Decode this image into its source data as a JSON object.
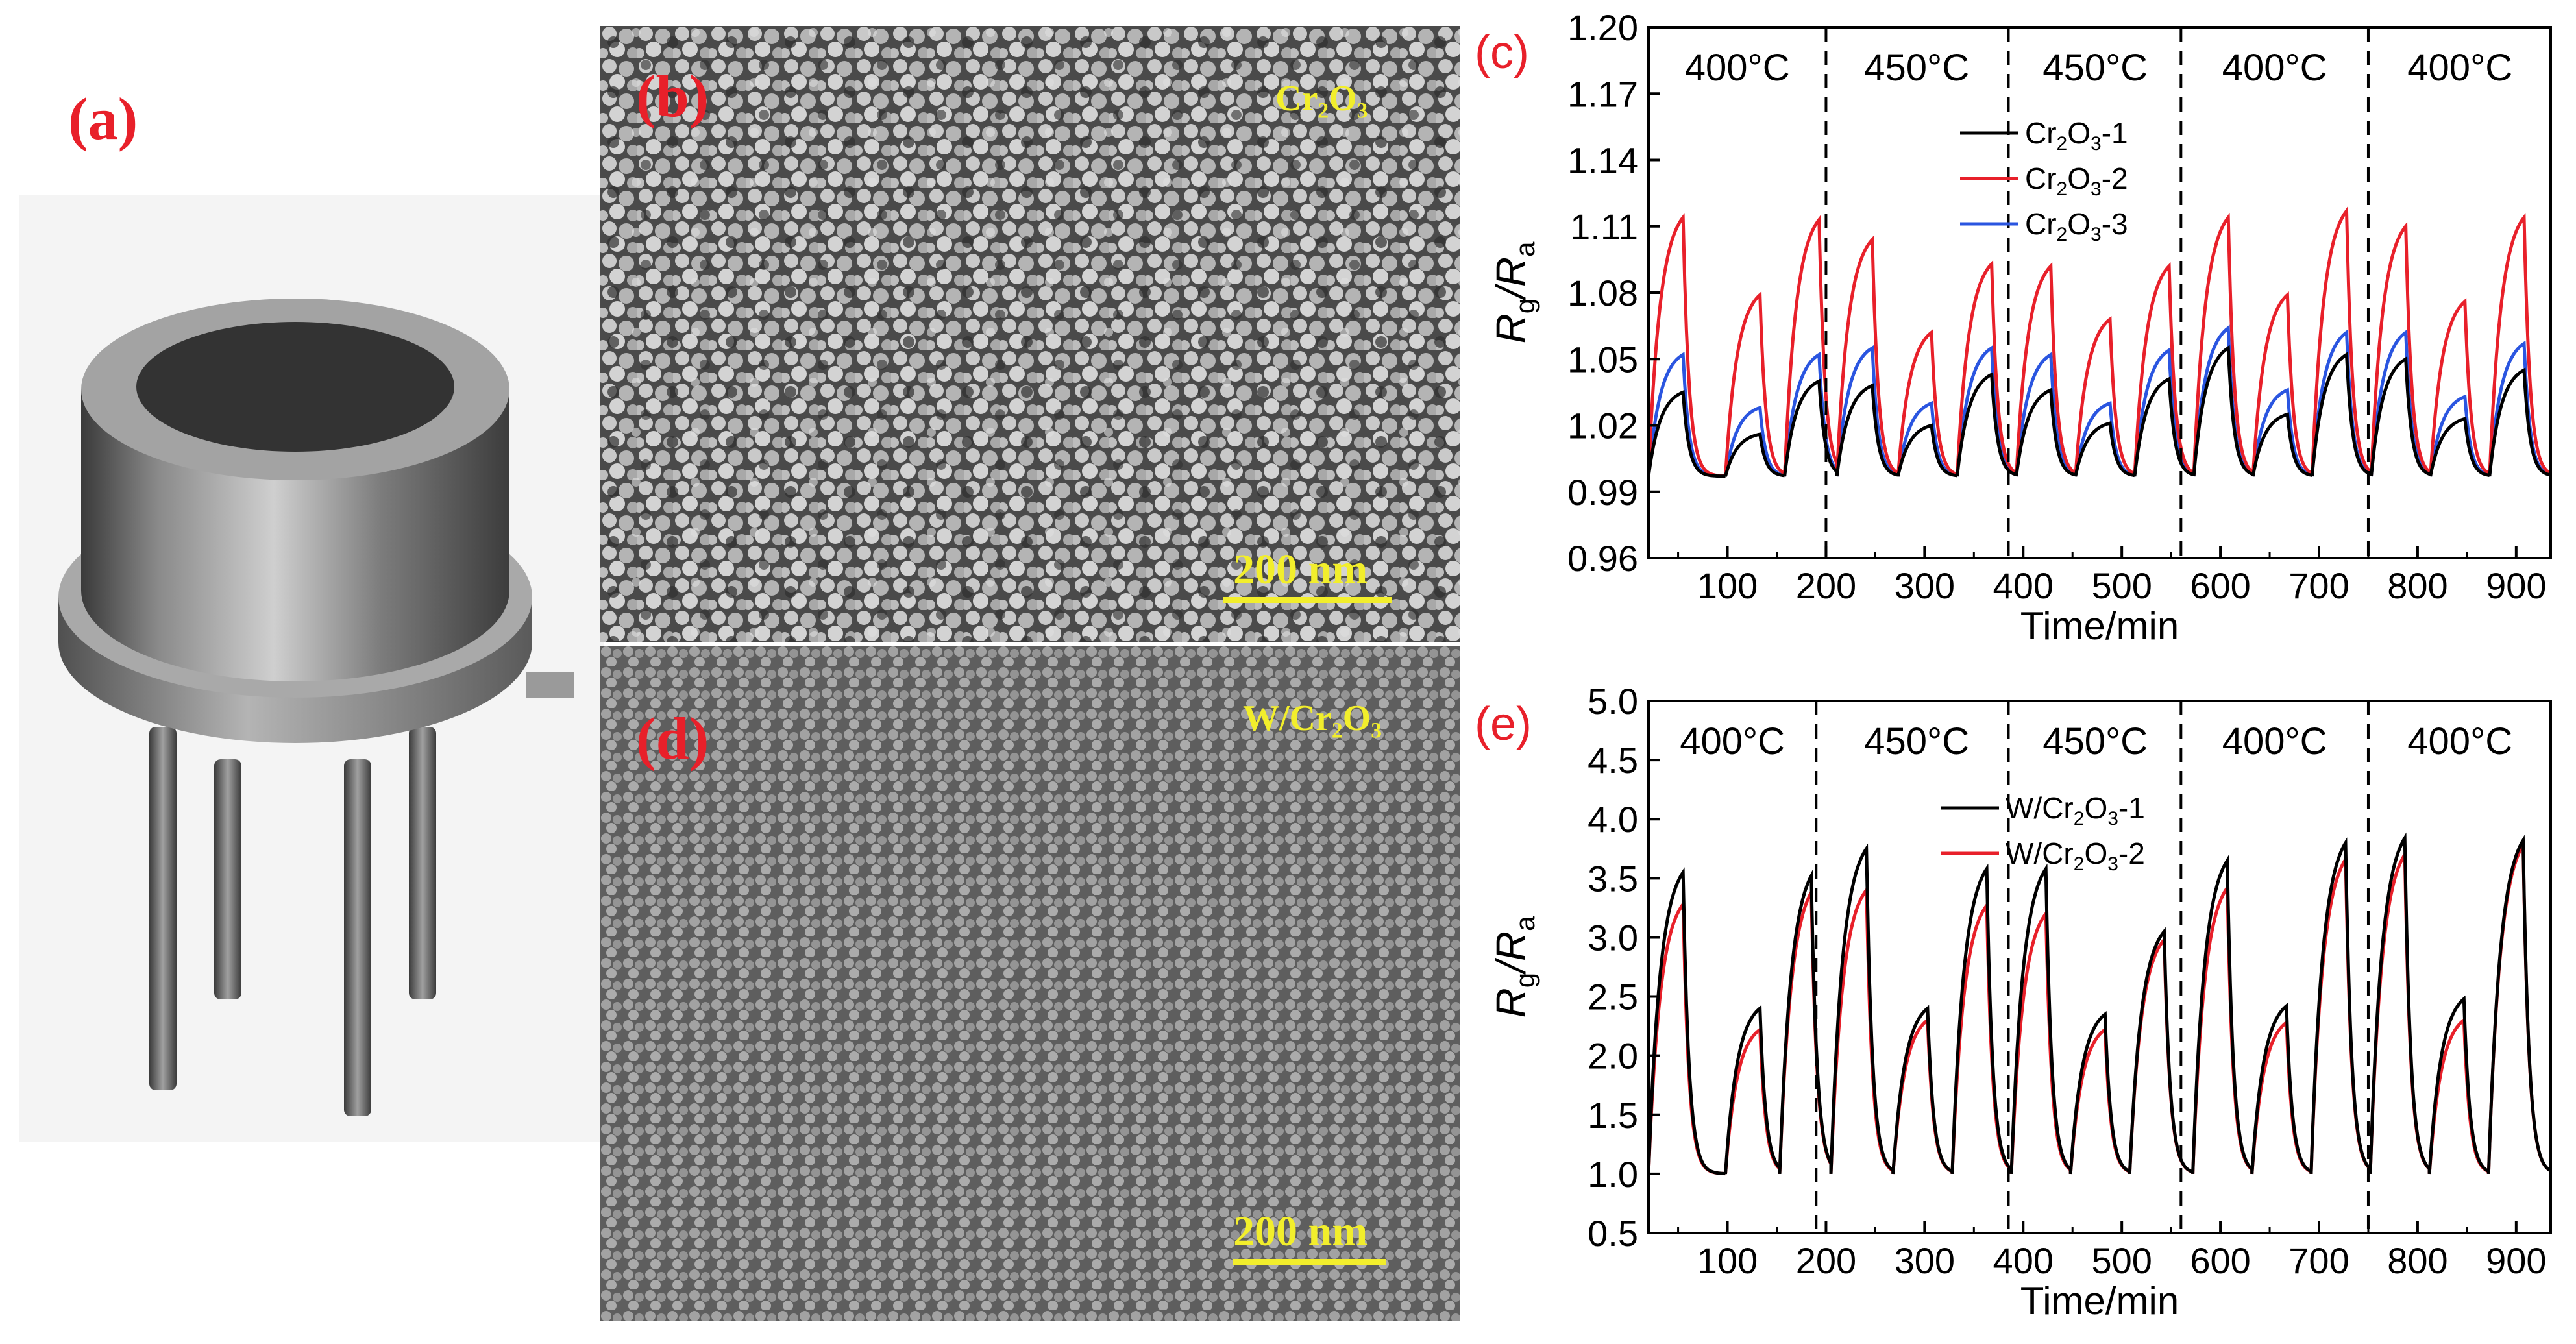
{
  "panels": {
    "a": {
      "label": "(a)"
    },
    "b": {
      "label": "(b)",
      "material": "Cr₂O₃",
      "scale_bar": "200 nm"
    },
    "d": {
      "label": "(d)",
      "material": "W/Cr₂O₃",
      "scale_bar": "200 nm"
    }
  },
  "colors": {
    "panel_label": "#e8202a",
    "sem_text": "#f2ee2c",
    "black_series": "#000000",
    "red_series": "#e8202a",
    "blue_series": "#2a55e0"
  },
  "chart_data": [
    {
      "id": "c",
      "panel_label": "(c)",
      "type": "line",
      "xlabel": "Time/min",
      "ylabel_main": "R",
      "ylabel_sub1": "g",
      "ylabel_sep": "/R",
      "ylabel_sub2": "a",
      "xlim": [
        20,
        935
      ],
      "ylim": [
        0.96,
        1.2
      ],
      "xticks": [
        100,
        200,
        300,
        400,
        500,
        600,
        700,
        800,
        900
      ],
      "xtick_labels": [
        "100",
        "200",
        "300",
        "400",
        "500",
        "600",
        "700",
        "800",
        "900"
      ],
      "yticks": [
        0.96,
        0.99,
        1.02,
        1.05,
        1.08,
        1.11,
        1.14,
        1.17,
        1.2
      ],
      "ytick_labels": [
        "0.96",
        "0.99",
        "1.02",
        "1.05",
        "1.08",
        "1.11",
        "1.14",
        "1.17",
        "1.20"
      ],
      "dividers": [
        200,
        385,
        560,
        750
      ],
      "temperatures": [
        {
          "x": 110,
          "label": "400°C"
        },
        {
          "x": 292,
          "label": "450°C"
        },
        {
          "x": 473,
          "label": "450°C"
        },
        {
          "x": 655,
          "label": "400°C"
        },
        {
          "x": 843,
          "label": "400°C"
        }
      ],
      "legend": {
        "position": "top-right",
        "entries": [
          {
            "pre": "Cr",
            "s1": "2",
            "mid": "O",
            "s2": "3",
            "post": "-1",
            "color": "#000000"
          },
          {
            "pre": "Cr",
            "s1": "2",
            "mid": "O",
            "s2": "3",
            "post": "-2",
            "color": "#e8202a"
          },
          {
            "pre": "Cr",
            "s1": "2",
            "mid": "O",
            "s2": "3",
            "post": "-3",
            "color": "#2a55e0"
          }
        ]
      },
      "baseline": 0.997,
      "pulses": [
        {
          "start": 20,
          "end": 55,
          "peaks": [
            1.035,
            1.114,
            1.052
          ]
        },
        {
          "start": 98,
          "end": 133,
          "peaks": [
            1.016,
            1.079,
            1.028
          ]
        },
        {
          "start": 158,
          "end": 193,
          "peaks": [
            1.04,
            1.113,
            1.052
          ]
        },
        {
          "start": 211,
          "end": 247,
          "peaks": [
            1.038,
            1.104,
            1.055
          ]
        },
        {
          "start": 273,
          "end": 307,
          "peaks": [
            1.02,
            1.062,
            1.03
          ]
        },
        {
          "start": 333,
          "end": 368,
          "peaks": [
            1.043,
            1.093,
            1.055
          ]
        },
        {
          "start": 393,
          "end": 428,
          "peaks": [
            1.036,
            1.092,
            1.052
          ]
        },
        {
          "start": 453,
          "end": 488,
          "peaks": [
            1.021,
            1.068,
            1.03
          ]
        },
        {
          "start": 513,
          "end": 548,
          "peaks": [
            1.041,
            1.092,
            1.054
          ]
        },
        {
          "start": 573,
          "end": 608,
          "peaks": [
            1.055,
            1.114,
            1.064
          ]
        },
        {
          "start": 633,
          "end": 668,
          "peaks": [
            1.025,
            1.079,
            1.036
          ]
        },
        {
          "start": 693,
          "end": 728,
          "peaks": [
            1.052,
            1.117,
            1.062
          ]
        },
        {
          "start": 753,
          "end": 788,
          "peaks": [
            1.05,
            1.11,
            1.062
          ]
        },
        {
          "start": 813,
          "end": 848,
          "peaks": [
            1.023,
            1.076,
            1.033
          ]
        },
        {
          "start": 873,
          "end": 908,
          "peaks": [
            1.045,
            1.114,
            1.057
          ]
        }
      ]
    },
    {
      "id": "e",
      "panel_label": "(e)",
      "type": "line",
      "xlabel": "Time/min",
      "ylabel_main": "R",
      "ylabel_sub1": "g",
      "ylabel_sep": "/R",
      "ylabel_sub2": "a",
      "xlim": [
        20,
        935
      ],
      "ylim": [
        0.5,
        5.0
      ],
      "xticks": [
        100,
        200,
        300,
        400,
        500,
        600,
        700,
        800,
        900
      ],
      "xtick_labels": [
        "100",
        "200",
        "300",
        "400",
        "500",
        "600",
        "700",
        "800",
        "900"
      ],
      "yticks": [
        0.5,
        1.0,
        1.5,
        2.0,
        2.5,
        3.0,
        3.5,
        4.0,
        4.5,
        5.0
      ],
      "ytick_labels": [
        "0.5",
        "1.0",
        "1.5",
        "2.0",
        "2.5",
        "3.0",
        "3.5",
        "4.0",
        "4.5",
        "5.0"
      ],
      "dividers": [
        190,
        385,
        560,
        750
      ],
      "temperatures": [
        {
          "x": 105,
          "label": "400°C"
        },
        {
          "x": 292,
          "label": "450°C"
        },
        {
          "x": 473,
          "label": "450°C"
        },
        {
          "x": 655,
          "label": "400°C"
        },
        {
          "x": 843,
          "label": "400°C"
        }
      ],
      "legend": {
        "position": "top-right",
        "entries": [
          {
            "pre": "W/Cr",
            "s1": "2",
            "mid": "O",
            "s2": "3",
            "post": "-1",
            "color": "#000000"
          },
          {
            "pre": "W/Cr",
            "s1": "2",
            "mid": "O",
            "s2": "3",
            "post": "-2",
            "color": "#e8202a"
          }
        ]
      },
      "baseline": 1.0,
      "pulses": [
        {
          "start": 20,
          "end": 55,
          "peaks": [
            3.55,
            3.28
          ]
        },
        {
          "start": 98,
          "end": 133,
          "peaks": [
            2.4,
            2.22
          ]
        },
        {
          "start": 153,
          "end": 185,
          "peaks": [
            3.52,
            3.38
          ]
        },
        {
          "start": 205,
          "end": 241,
          "peaks": [
            3.75,
            3.4
          ]
        },
        {
          "start": 268,
          "end": 303,
          "peaks": [
            2.4,
            2.3
          ]
        },
        {
          "start": 328,
          "end": 363,
          "peaks": [
            3.58,
            3.27
          ]
        },
        {
          "start": 388,
          "end": 423,
          "peaks": [
            3.58,
            3.2
          ]
        },
        {
          "start": 448,
          "end": 483,
          "peaks": [
            2.35,
            2.22
          ]
        },
        {
          "start": 508,
          "end": 543,
          "peaks": [
            3.05,
            2.98
          ]
        },
        {
          "start": 572,
          "end": 607,
          "peaks": [
            3.65,
            3.42
          ]
        },
        {
          "start": 632,
          "end": 667,
          "peaks": [
            2.42,
            2.28
          ]
        },
        {
          "start": 692,
          "end": 727,
          "peaks": [
            3.8,
            3.66
          ]
        },
        {
          "start": 752,
          "end": 787,
          "peaks": [
            3.84,
            3.7
          ]
        },
        {
          "start": 812,
          "end": 847,
          "peaks": [
            2.48,
            2.3
          ]
        },
        {
          "start": 872,
          "end": 907,
          "peaks": [
            3.82,
            3.78
          ]
        }
      ]
    }
  ]
}
